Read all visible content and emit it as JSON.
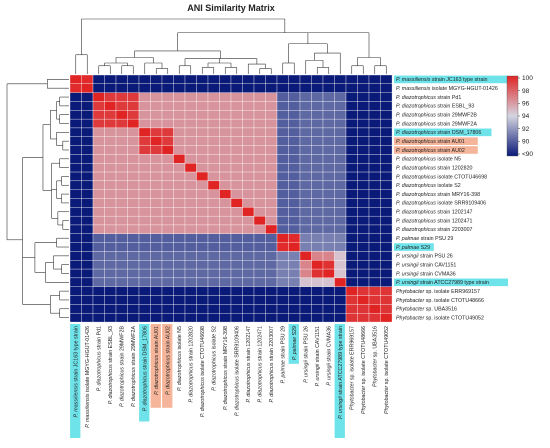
{
  "chart_data": {
    "type": "heatmap",
    "title": "ANI Similarity Matrix",
    "labels": [
      {
        "species": "P. massiliensis",
        "rest": "strain JC163 type strain",
        "highlight": "cyan"
      },
      {
        "species": "P. massiliensis",
        "rest": "isolate MGYG-HGUT-01426",
        "highlight": ""
      },
      {
        "species": "P. diazotrophicus",
        "rest": "strain Pd1",
        "highlight": ""
      },
      {
        "species": "P. diazotrophicus",
        "rest": "strain ESBL_93",
        "highlight": ""
      },
      {
        "species": "P. diazotrophicus",
        "rest": "strain 29MWF2B",
        "highlight": ""
      },
      {
        "species": "P. diazotrophicus",
        "rest": "strain 29MWF2A",
        "highlight": ""
      },
      {
        "species": "P. diazotrophicus",
        "rest": "strain DSM_17806",
        "highlight": "cyan"
      },
      {
        "species": "P. diazotrophicus",
        "rest": "strain AU01",
        "highlight": "salmon"
      },
      {
        "species": "P. diazotrophicus",
        "rest": "strain AU02",
        "highlight": "salmon"
      },
      {
        "species": "P. diazotrophicus",
        "rest": "isolate N5",
        "highlight": ""
      },
      {
        "species": "P. diazotrophicus",
        "rest": "strain 1202820",
        "highlight": ""
      },
      {
        "species": "P. diazotrophicus",
        "rest": "isolate CTOTU46698",
        "highlight": ""
      },
      {
        "species": "P. diazotrophicus",
        "rest": "isolate S2",
        "highlight": ""
      },
      {
        "species": "P. diazotrophicus",
        "rest": "strain MRY16-398",
        "highlight": ""
      },
      {
        "species": "P. diazotrophicus",
        "rest": "isolate SRR9109406",
        "highlight": ""
      },
      {
        "species": "P. diazotrophicus",
        "rest": "strain 1202147",
        "highlight": ""
      },
      {
        "species": "P. diazotrophicus",
        "rest": "strain 1202471",
        "highlight": ""
      },
      {
        "species": "P. diazotrophicus",
        "rest": "strain 2203007",
        "highlight": ""
      },
      {
        "species": "P. palmae",
        "rest": "strain PSU 29",
        "highlight": ""
      },
      {
        "species": "P. palmae",
        "rest": "S29",
        "highlight": "cyan"
      },
      {
        "species": "P. ursingii",
        "rest": "strain PSU 26",
        "highlight": ""
      },
      {
        "species": "P. ursingii",
        "rest": "strain CAV1151",
        "highlight": ""
      },
      {
        "species": "P. ursingii",
        "rest": "strain CVMA36",
        "highlight": ""
      },
      {
        "species": "P. ursingii",
        "rest": "strain ATCC27989 type strain",
        "highlight": "cyan"
      },
      {
        "species": "Phytobacter",
        "rest": "sp. isolate ERR969157",
        "highlight": ""
      },
      {
        "species": "Phytobacter",
        "rest": "sp. isolate CTOTU48666",
        "highlight": ""
      },
      {
        "species": "Phytobacter",
        "rest": "sp. UBA3516",
        "highlight": ""
      },
      {
        "species": "Phytobacter",
        "rest": "sp. isolate CTOTU49052",
        "highlight": ""
      }
    ],
    "groups": [
      {
        "name": "P. massiliensis",
        "start": 0,
        "end": 1,
        "within": 99.8
      },
      {
        "name": "P. diazotrophicus",
        "start": 2,
        "end": 17,
        "within": 96.5
      },
      {
        "name": "P. palmae",
        "start": 18,
        "end": 19,
        "within": 99.8
      },
      {
        "name": "P. ursingii",
        "start": 20,
        "end": 23,
        "within": 98.0
      },
      {
        "name": "Phytobacter",
        "start": 24,
        "end": 27,
        "within": 99.5
      }
    ],
    "diagonal": 100,
    "between_default": 89.0,
    "between_overrides": [
      {
        "a": "P. diazotrophicus",
        "b": "P. palmae",
        "value": 91.0
      },
      {
        "a": "P. diazotrophicus",
        "b": "P. ursingii",
        "value": 91.3
      },
      {
        "a": "P. palmae",
        "b": "P. ursingii",
        "value": 92.0
      }
    ],
    "colorbar": {
      "min": 89,
      "max": 100,
      "ticks": [
        "100",
        "98",
        "96",
        "94",
        "92",
        "90",
        "<90"
      ]
    },
    "colors": {
      "low": "#0a1a78",
      "mid": "#d4d4e0",
      "high": "#e02424",
      "highlight_cyan": "#6fe3ea",
      "highlight_salmon": "#f5b59a"
    }
  }
}
